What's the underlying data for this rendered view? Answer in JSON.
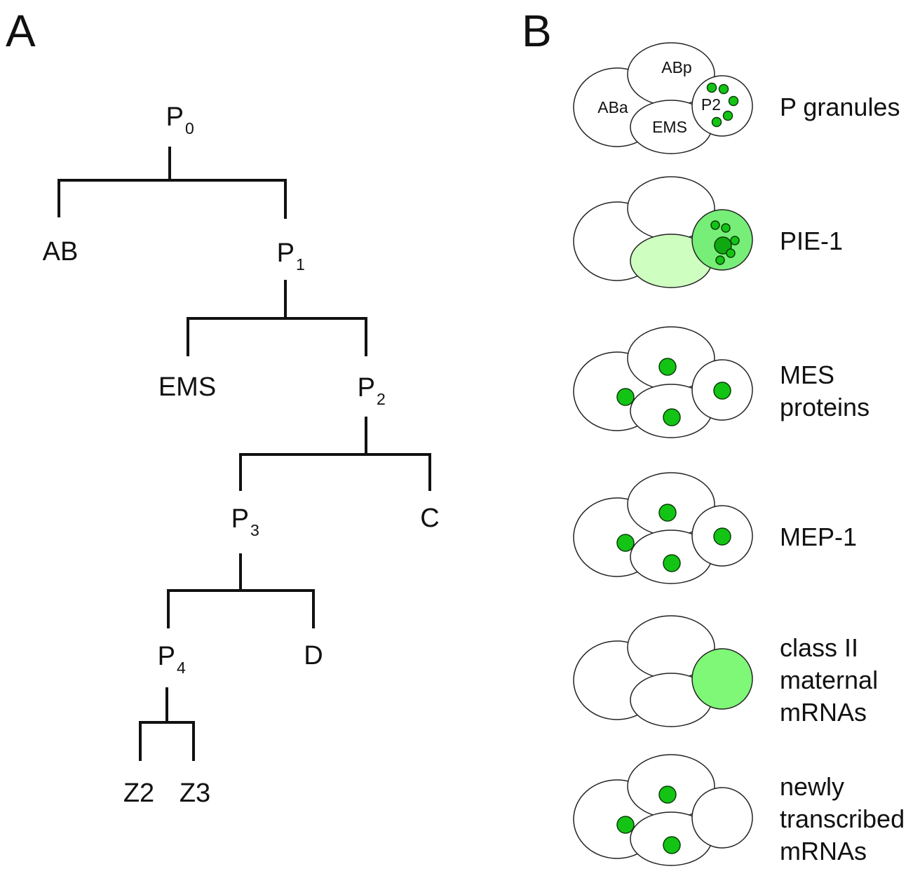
{
  "panels": {
    "a_label": "A",
    "b_label": "B"
  },
  "colors": {
    "line": "#111111",
    "cell_fill": "#ffffff",
    "dot_green": "#14c414",
    "dot_green_dark": "#10a810",
    "pie1_p2_fill": "#77ee77",
    "pie1_ems_fill": "#cfffc0",
    "classII_p2_fill": "#7ff777"
  },
  "lineage": {
    "nodes": [
      {
        "id": "P0",
        "base": "P",
        "sub": "0"
      },
      {
        "id": "AB",
        "base": "AB",
        "sub": ""
      },
      {
        "id": "P1",
        "base": "P",
        "sub": "1"
      },
      {
        "id": "EMS",
        "base": "EMS",
        "sub": ""
      },
      {
        "id": "P2",
        "base": "P",
        "sub": "2"
      },
      {
        "id": "P3",
        "base": "P",
        "sub": "3"
      },
      {
        "id": "C",
        "base": "C",
        "sub": ""
      },
      {
        "id": "P4",
        "base": "P",
        "sub": "4"
      },
      {
        "id": "D",
        "base": "D",
        "sub": ""
      },
      {
        "id": "Z2",
        "base": "Z2",
        "sub": ""
      },
      {
        "id": "Z3",
        "base": "Z3",
        "sub": ""
      }
    ],
    "divisions": [
      {
        "parent": "P0",
        "children": [
          "AB",
          "P1"
        ]
      },
      {
        "parent": "P1",
        "children": [
          "EMS",
          "P2"
        ]
      },
      {
        "parent": "P2",
        "children": [
          "P3",
          "C"
        ]
      },
      {
        "parent": "P3",
        "children": [
          "P4",
          "D"
        ]
      },
      {
        "parent": "P4",
        "children": [
          "Z2",
          "Z3"
        ]
      }
    ]
  },
  "embryo_cells": {
    "aba": "ABa",
    "abp": "ABp",
    "ems": "EMS",
    "p2": "P2"
  },
  "rows": [
    {
      "label_lines": [
        "P granules"
      ],
      "labeled_cells": true,
      "pattern": "p_granules"
    },
    {
      "label_lines": [
        "PIE-1"
      ],
      "labeled_cells": false,
      "pattern": "pie1"
    },
    {
      "label_lines": [
        "MES",
        "proteins"
      ],
      "labeled_cells": false,
      "pattern": "nuclear_all"
    },
    {
      "label_lines": [
        "MEP-1"
      ],
      "labeled_cells": false,
      "pattern": "nuclear_all"
    },
    {
      "label_lines": [
        "class II",
        "maternal",
        "mRNAs"
      ],
      "labeled_cells": false,
      "pattern": "p2_cytoplasm"
    },
    {
      "label_lines": [
        "newly",
        "transcribed",
        "mRNAs"
      ],
      "labeled_cells": false,
      "pattern": "nuclear_somatic"
    }
  ]
}
